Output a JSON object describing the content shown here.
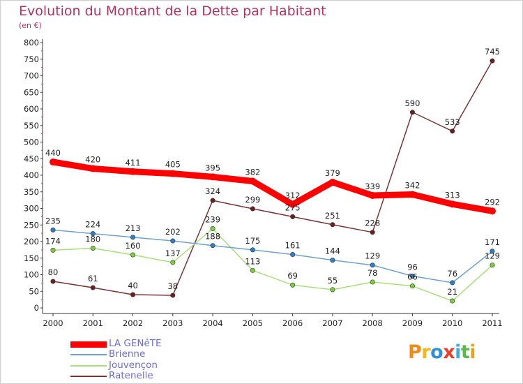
{
  "title": "Evolution du Montant de la Dette par Habitant",
  "subtitle": "(en €)",
  "logo": {
    "letters": [
      "P",
      "r",
      "o",
      "x",
      "i",
      "t",
      "i"
    ],
    "colors": [
      "#f08b1a",
      "#f5b81c",
      "#2f8fd8",
      "#e8402c",
      "#43a9e0",
      "#5ab94a",
      "#e2a31f"
    ]
  },
  "chart_data": {
    "type": "line",
    "x": [
      "2000",
      "2001",
      "2002",
      "2003",
      "2004",
      "2005",
      "2006",
      "2007",
      "2008",
      "2009",
      "2010",
      "2011"
    ],
    "ylim": [
      0,
      800
    ],
    "yticks": [
      "0",
      "50",
      "100",
      "150",
      "200",
      "250",
      "300",
      "350",
      "400",
      "450",
      "500",
      "550",
      "600",
      "650",
      "700",
      "750",
      "800"
    ],
    "grid": false,
    "legend_position": "bottom-left",
    "series": [
      {
        "name": "LA GENêTE",
        "values": [
          440,
          420,
          411,
          405,
          395,
          382,
          312,
          379,
          339,
          342,
          313,
          292
        ],
        "color": "#ff0000",
        "dot": "#ff0000"
      },
      {
        "name": "Brienne",
        "values": [
          235,
          224,
          213,
          202,
          188,
          175,
          161,
          144,
          129,
          96,
          76,
          171
        ],
        "color": "#6ea0d0",
        "dot": "#2f7fc4"
      },
      {
        "name": "Jouvençon",
        "values": [
          174,
          180,
          160,
          137,
          239,
          113,
          69,
          55,
          78,
          66,
          21,
          129
        ],
        "color": "#a6e07a",
        "dot": "#7ccf3d"
      },
      {
        "name": "Ratenelle",
        "values": [
          80,
          61,
          40,
          38,
          324,
          299,
          275,
          251,
          228,
          590,
          533,
          745
        ],
        "color": "#7a3434",
        "dot": "#6b1f1f"
      }
    ]
  }
}
